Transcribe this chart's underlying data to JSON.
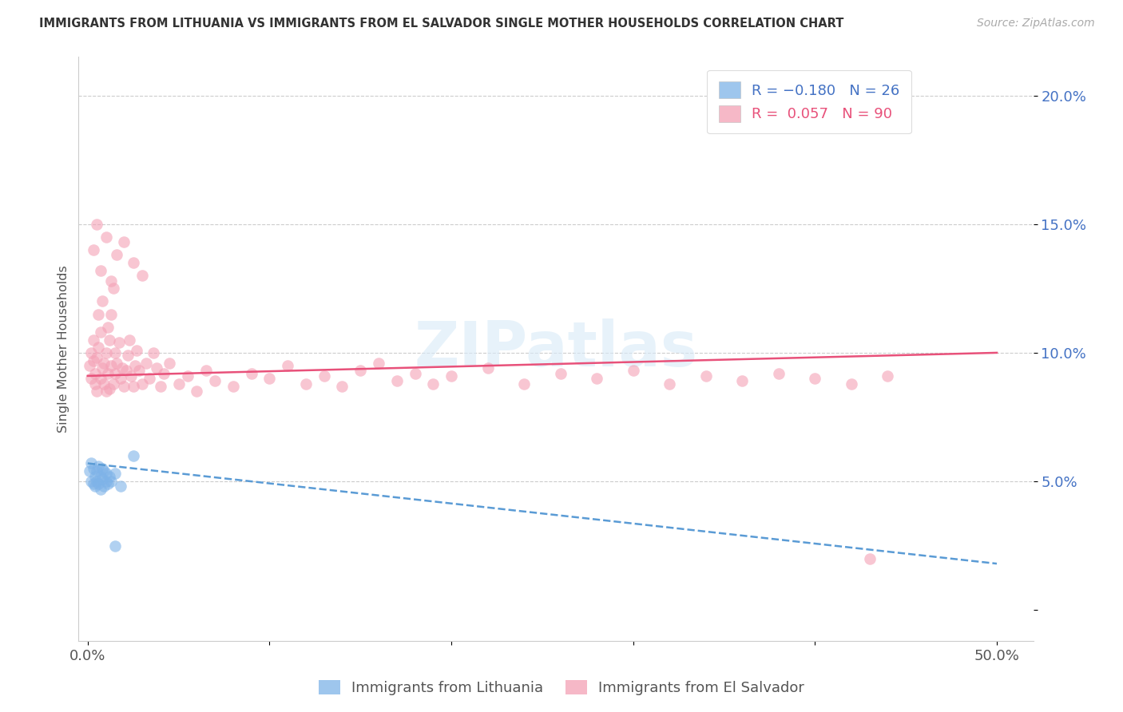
{
  "title": "IMMIGRANTS FROM LITHUANIA VS IMMIGRANTS FROM EL SALVADOR SINGLE MOTHER HOUSEHOLDS CORRELATION CHART",
  "source": "Source: ZipAtlas.com",
  "ylabel": "Single Mother Households",
  "y_ticks": [
    0.0,
    0.05,
    0.1,
    0.15,
    0.2
  ],
  "y_tick_labels": [
    "",
    "5.0%",
    "10.0%",
    "15.0%",
    "20.0%"
  ],
  "x_ticks": [
    0.0,
    0.1,
    0.2,
    0.3,
    0.4,
    0.5
  ],
  "x_tick_labels": [
    "0.0%",
    "",
    "",
    "",
    "",
    "50.0%"
  ],
  "xlim": [
    -0.005,
    0.52
  ],
  "ylim": [
    -0.012,
    0.215
  ],
  "color_lithuania": "#7eb3e8",
  "color_el_salvador": "#f4a0b5",
  "color_line_lithuania": "#5a9bd5",
  "color_line_el_salvador": "#e8517a",
  "watermark": "ZIPatlas",
  "lith_line_x0": 0.0,
  "lith_line_y0": 0.057,
  "lith_line_x1": 0.5,
  "lith_line_y1": 0.018,
  "es_line_x0": 0.0,
  "es_line_y0": 0.091,
  "es_line_x1": 0.5,
  "es_line_y1": 0.1,
  "lithuania_x": [
    0.001,
    0.002,
    0.002,
    0.003,
    0.003,
    0.004,
    0.004,
    0.005,
    0.005,
    0.006,
    0.006,
    0.007,
    0.007,
    0.008,
    0.008,
    0.009,
    0.009,
    0.01,
    0.01,
    0.011,
    0.012,
    0.013,
    0.015,
    0.018,
    0.025,
    0.015
  ],
  "lithuania_y": [
    0.054,
    0.057,
    0.05,
    0.055,
    0.049,
    0.052,
    0.048,
    0.054,
    0.05,
    0.056,
    0.049,
    0.052,
    0.047,
    0.055,
    0.051,
    0.054,
    0.048,
    0.053,
    0.05,
    0.049,
    0.052,
    0.05,
    0.053,
    0.048,
    0.06,
    0.025
  ],
  "el_salvador_x": [
    0.001,
    0.002,
    0.002,
    0.003,
    0.003,
    0.004,
    0.004,
    0.005,
    0.005,
    0.006,
    0.006,
    0.007,
    0.007,
    0.008,
    0.008,
    0.009,
    0.009,
    0.01,
    0.01,
    0.011,
    0.011,
    0.012,
    0.012,
    0.013,
    0.013,
    0.014,
    0.014,
    0.015,
    0.015,
    0.016,
    0.017,
    0.018,
    0.019,
    0.02,
    0.021,
    0.022,
    0.023,
    0.024,
    0.025,
    0.026,
    0.027,
    0.028,
    0.03,
    0.032,
    0.034,
    0.036,
    0.038,
    0.04,
    0.042,
    0.045,
    0.05,
    0.055,
    0.06,
    0.065,
    0.07,
    0.08,
    0.09,
    0.1,
    0.11,
    0.12,
    0.13,
    0.14,
    0.15,
    0.16,
    0.17,
    0.18,
    0.19,
    0.2,
    0.22,
    0.24,
    0.26,
    0.28,
    0.3,
    0.32,
    0.34,
    0.36,
    0.38,
    0.4,
    0.42,
    0.44,
    0.003,
    0.005,
    0.007,
    0.01,
    0.013,
    0.016,
    0.02,
    0.025,
    0.03,
    0.43
  ],
  "el_salvador_y": [
    0.095,
    0.1,
    0.09,
    0.097,
    0.105,
    0.088,
    0.092,
    0.098,
    0.085,
    0.102,
    0.115,
    0.09,
    0.108,
    0.094,
    0.12,
    0.088,
    0.096,
    0.1,
    0.085,
    0.092,
    0.11,
    0.105,
    0.086,
    0.095,
    0.115,
    0.125,
    0.088,
    0.092,
    0.1,
    0.096,
    0.104,
    0.09,
    0.094,
    0.087,
    0.093,
    0.099,
    0.105,
    0.091,
    0.087,
    0.095,
    0.101,
    0.093,
    0.088,
    0.096,
    0.09,
    0.1,
    0.094,
    0.087,
    0.092,
    0.096,
    0.088,
    0.091,
    0.085,
    0.093,
    0.089,
    0.087,
    0.092,
    0.09,
    0.095,
    0.088,
    0.091,
    0.087,
    0.093,
    0.096,
    0.089,
    0.092,
    0.088,
    0.091,
    0.094,
    0.088,
    0.092,
    0.09,
    0.093,
    0.088,
    0.091,
    0.089,
    0.092,
    0.09,
    0.088,
    0.091,
    0.14,
    0.15,
    0.132,
    0.145,
    0.128,
    0.138,
    0.143,
    0.135,
    0.13,
    0.02
  ]
}
